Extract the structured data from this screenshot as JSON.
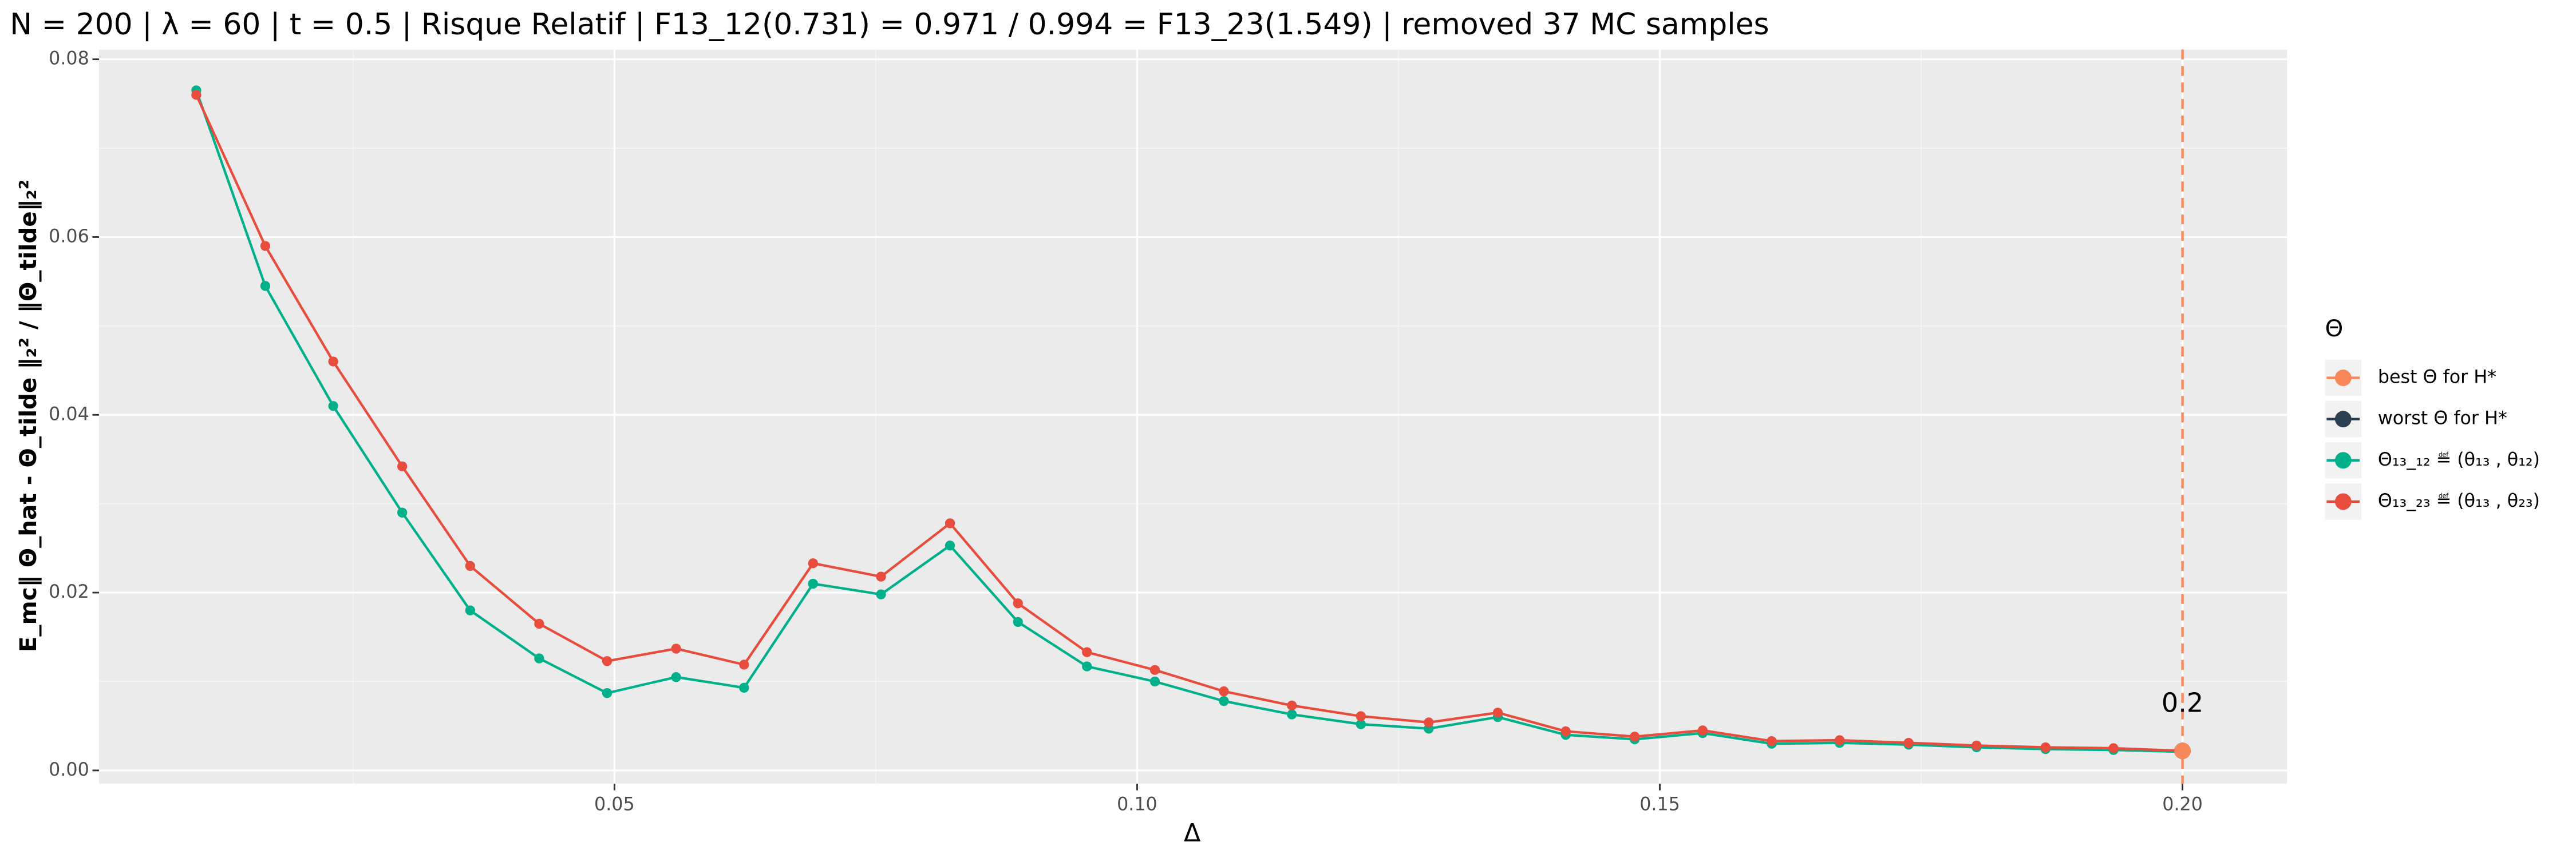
{
  "chart_data": {
    "type": "line",
    "title": "N = 200 | λ = 60 | t = 0.5 | Risque Relatif | F13_12(0.731) = 0.971 / 0.994 = F13_23(1.549) | removed 37 MC samples",
    "xlabel": "Δ",
    "ylabel": "E_mc‖ Θ_hat - Θ_tilde ‖₂²  /  ‖Θ_tilde‖₂²",
    "legend_title": "Θ",
    "legend": "right",
    "grid": true,
    "xlim": [
      0.0007,
      0.21
    ],
    "ylim": [
      -0.0015,
      0.0811
    ],
    "xticks": [
      0.05,
      {
        "value": 0.1,
        "label": "0.10"
      },
      0.15,
      {
        "value": 0.2,
        "label": "0.20"
      }
    ],
    "yticks": [
      {
        "value": 0,
        "label": "0.00"
      },
      {
        "value": 0.02,
        "label": "0.02"
      },
      {
        "value": 0.04,
        "label": "0.04"
      },
      {
        "value": 0.06,
        "label": "0.06"
      },
      {
        "value": 0.08,
        "label": "0.08"
      }
    ],
    "x": [
      0.01,
      0.0166,
      0.0231,
      0.0297,
      0.0362,
      0.0428,
      0.0493,
      0.0559,
      0.0624,
      0.069,
      0.0755,
      0.0821,
      0.0886,
      0.0952,
      0.1017,
      0.1083,
      0.1148,
      0.1214,
      0.1279,
      0.1345,
      0.141,
      0.1476,
      0.1541,
      0.1607,
      0.1672,
      0.1738,
      0.1803,
      0.1869,
      0.1934,
      0.2
    ],
    "points": [
      {
        "name": "best Θ for H*",
        "color": "#f8875a",
        "x": 0.2,
        "y": 0.0022
      },
      {
        "name": "worst Θ for H*",
        "color": "#2c3e50",
        "x": 0.2,
        "y": 0.0022
      }
    ],
    "series": [
      {
        "name": "Θ₁₃_₁₂ ≝ (θ₁₃ , θ₁₂)",
        "color": "#00b08b",
        "values": [
          0.0765,
          0.0545,
          0.041,
          0.029,
          0.018,
          0.0126,
          0.0087,
          0.0105,
          0.0093,
          0.021,
          0.0198,
          0.0253,
          0.0167,
          0.0117,
          0.01,
          0.0078,
          0.0063,
          0.0052,
          0.0047,
          0.006,
          0.004,
          0.0035,
          0.0042,
          0.003,
          0.0031,
          0.0029,
          0.0026,
          0.0024,
          0.0023,
          0.0021
        ]
      },
      {
        "name": "Θ₁₃_₂₃ ≝ (θ₁₃ , θ₂₃)",
        "color": "#e74c3c",
        "values": [
          0.076,
          0.059,
          0.046,
          0.0342,
          0.023,
          0.0165,
          0.0123,
          0.0137,
          0.0119,
          0.0233,
          0.0218,
          0.0278,
          0.0188,
          0.0133,
          0.0113,
          0.0089,
          0.0073,
          0.0061,
          0.0054,
          0.0065,
          0.0044,
          0.0038,
          0.0045,
          0.0033,
          0.0034,
          0.0031,
          0.0028,
          0.0026,
          0.0025,
          0.0022
        ]
      }
    ],
    "vline": {
      "x": 0.2,
      "color": "#f8875a"
    },
    "annotation": "0.2"
  }
}
